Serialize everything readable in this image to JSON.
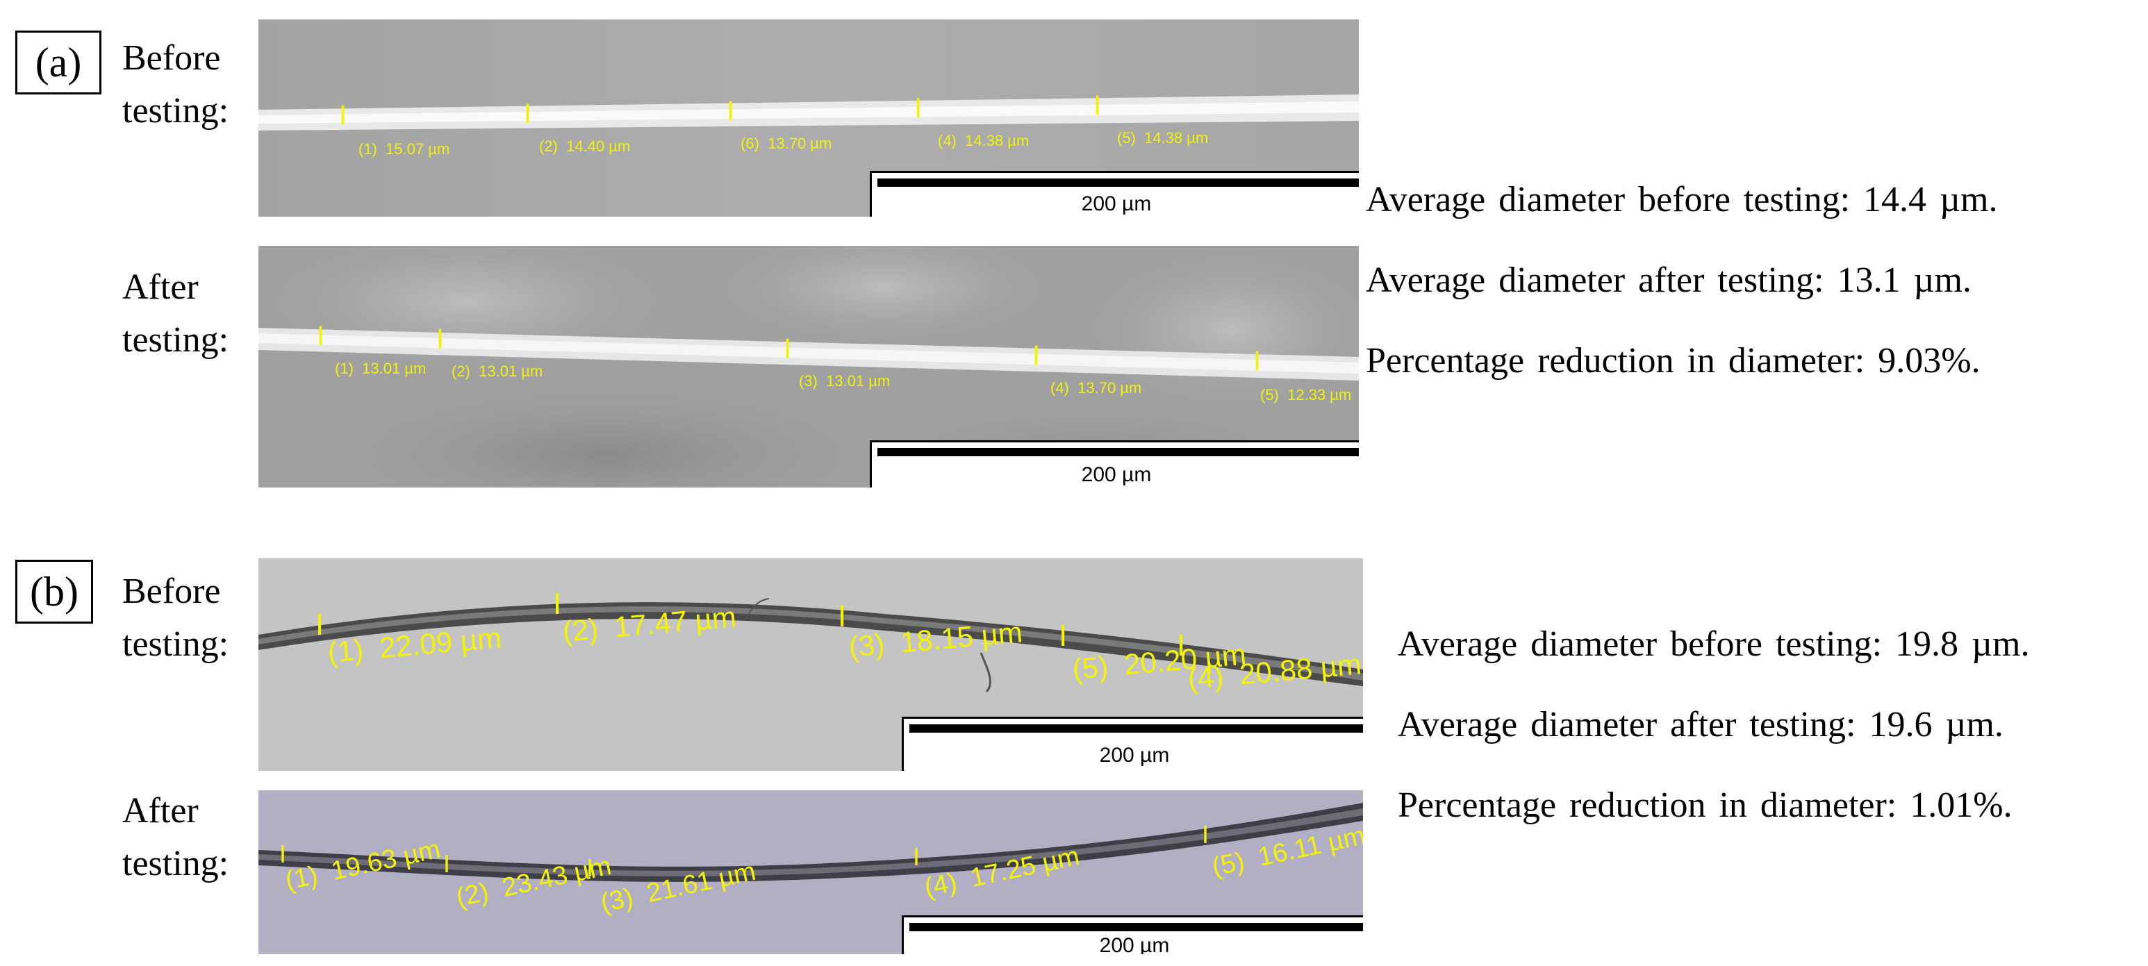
{
  "panel_a": {
    "label": "(a)",
    "before": {
      "caption": "Before\ntesting:",
      "measurements": [
        {
          "tag": "(1)",
          "value": "15.07 µm"
        },
        {
          "tag": "(2)",
          "value": "14.40 µm"
        },
        {
          "tag": "(6)",
          "value": "13.70 µm"
        },
        {
          "tag": "(4)",
          "value": "14.38 µm"
        },
        {
          "tag": "(5)",
          "value": "14.38 µm"
        }
      ],
      "scale": "200 µm"
    },
    "after": {
      "caption": "After\ntesting:",
      "measurements": [
        {
          "tag": "(1)",
          "value": "13.01 µm"
        },
        {
          "tag": "(2)",
          "value": "13.01 µm"
        },
        {
          "tag": "(3)",
          "value": "13.01 µm"
        },
        {
          "tag": "(4)",
          "value": "13.70 µm"
        },
        {
          "tag": "(5)",
          "value": "12.33 µm"
        }
      ],
      "scale": "200 µm"
    },
    "stats": [
      "Average diameter before testing: 14.4 µm.",
      "Average diameter after testing: 13.1 µm.",
      "Percentage reduction in diameter: 9.03%."
    ]
  },
  "panel_b": {
    "label": "(b)",
    "before": {
      "caption": "Before\ntesting:",
      "measurements": [
        {
          "tag": "(1)",
          "value": "22.09 µm"
        },
        {
          "tag": "(2)",
          "value": "17.47 µm"
        },
        {
          "tag": "(3)",
          "value": "18.15 µm"
        },
        {
          "tag": "(5)",
          "value": "20.20 µm"
        },
        {
          "tag": "(4)",
          "value": "20.88 µm"
        }
      ],
      "scale": "200 µm"
    },
    "after": {
      "caption": "After\ntesting:",
      "measurements": [
        {
          "tag": "(1)",
          "value": "19.63 µm"
        },
        {
          "tag": "(2)",
          "value": "23.43 µm"
        },
        {
          "tag": "(3)",
          "value": "21.61 µm"
        },
        {
          "tag": "(4)",
          "value": "17.25 µm"
        },
        {
          "tag": "(5)",
          "value": "16.11 µm"
        }
      ],
      "scale": "200 µm"
    },
    "stats": [
      "Average diameter before testing: 19.8 µm.",
      "Average diameter after testing: 19.6 µm.",
      "Percentage reduction in diameter: 1.01%."
    ]
  },
  "colors": {
    "annotation": "#f2f20a",
    "micrograph_a_bg": "#a9a9a9",
    "micrograph_b_before_bg": "#c5c5c5",
    "micrograph_b_after_bg": "#b3afc4"
  }
}
